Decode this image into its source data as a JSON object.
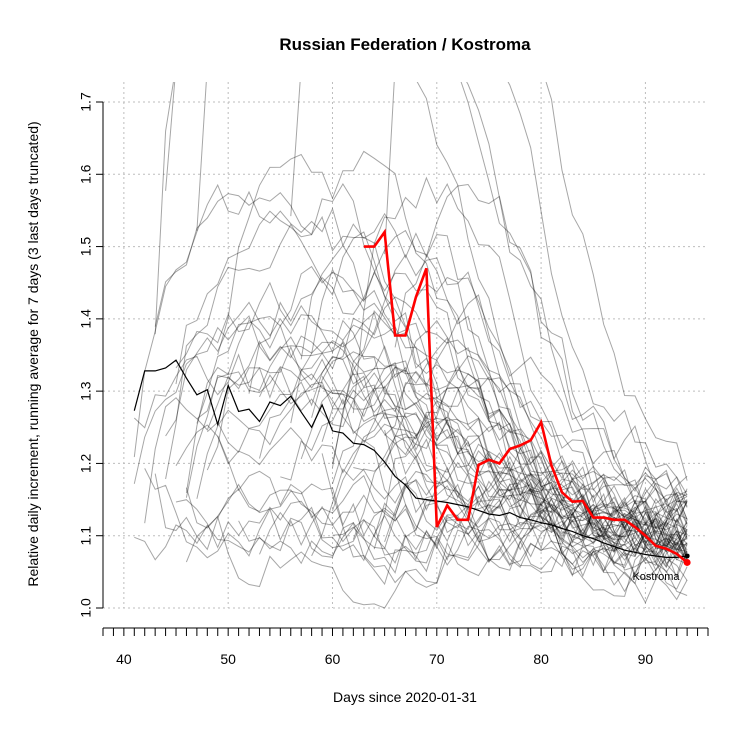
{
  "chart_data": {
    "type": "line",
    "title": "Russian Federation / Kostroma",
    "xlabel": "Days since 2020-01-31",
    "ylabel": "Relative daily increment, running average for 7 days (3 last days truncated)",
    "xlim": [
      38,
      96
    ],
    "ylim": [
      1.0,
      1.7
    ],
    "x_ticks": [
      40,
      50,
      60,
      70,
      80,
      90
    ],
    "y_ticks": [
      1.0,
      1.1,
      1.2,
      1.3,
      1.4,
      1.5,
      1.6,
      1.7
    ],
    "grid": true,
    "highlight_label": "Kostroma",
    "colors": {
      "highlight": "#ff0000",
      "country": "#000000",
      "others": "#9e9e9e"
    },
    "series": [
      {
        "role": "country",
        "x": [
          41,
          42,
          43,
          44,
          45,
          46,
          47,
          48,
          49,
          50,
          51,
          52,
          53,
          54,
          55,
          56,
          57,
          58,
          59,
          60,
          61,
          62,
          63,
          64,
          65,
          66,
          67,
          68,
          69,
          70,
          71,
          72,
          73,
          74,
          75,
          76,
          77,
          78,
          79,
          80,
          81,
          82,
          83,
          84,
          85,
          86,
          87,
          88,
          89,
          90,
          91,
          92,
          93,
          94
        ],
        "values": [
          1.273,
          1.328,
          1.328,
          1.332,
          1.343,
          1.318,
          1.295,
          1.302,
          1.254,
          1.308,
          1.272,
          1.275,
          1.258,
          1.285,
          1.28,
          1.293,
          1.271,
          1.25,
          1.281,
          1.245,
          1.242,
          1.228,
          1.226,
          1.218,
          1.202,
          1.182,
          1.17,
          1.152,
          1.15,
          1.148,
          1.146,
          1.143,
          1.14,
          1.135,
          1.13,
          1.128,
          1.132,
          1.125,
          1.122,
          1.118,
          1.115,
          1.11,
          1.106,
          1.1,
          1.096,
          1.09,
          1.085,
          1.08,
          1.077,
          1.074,
          1.072,
          1.07,
          1.07,
          1.072
        ]
      },
      {
        "role": "region",
        "x": [
          63,
          64,
          65,
          66,
          67,
          68,
          69,
          70,
          71,
          72,
          73,
          74,
          75,
          76,
          77,
          78,
          79,
          80,
          81,
          82,
          83,
          84,
          85,
          86,
          87,
          88,
          89,
          90,
          91,
          92,
          93,
          94
        ],
        "values": [
          1.5,
          1.5,
          1.52,
          1.377,
          1.377,
          1.43,
          1.47,
          1.112,
          1.142,
          1.122,
          1.122,
          1.198,
          1.205,
          1.2,
          1.22,
          1.225,
          1.232,
          1.257,
          1.197,
          1.16,
          1.147,
          1.148,
          1.125,
          1.125,
          1.122,
          1.122,
          1.112,
          1.1,
          1.086,
          1.082,
          1.075,
          1.063
        ]
      }
    ],
    "other_regions_summary": {
      "count": 60,
      "x_range": [
        41,
        94
      ],
      "converged_range_at_end": [
        1.03,
        1.13
      ]
    }
  }
}
